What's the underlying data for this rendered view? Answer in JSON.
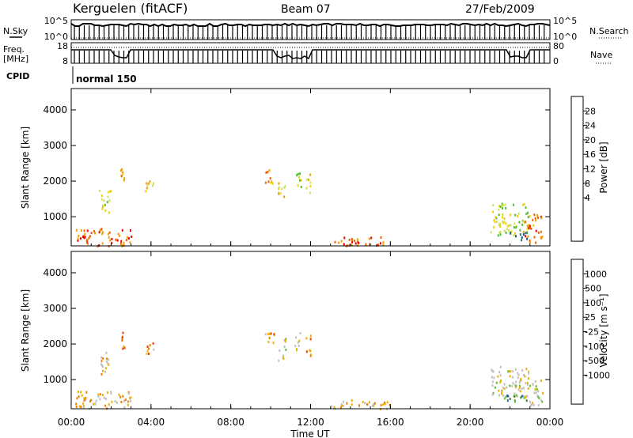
{
  "header": {
    "station": "Kerguelen (fitACF)",
    "beam": "Beam 07",
    "date": "27/Feb/2009"
  },
  "status_panels": {
    "nsky_label": "N.Sky",
    "nsky_ticks": [
      "10^5",
      "10^0"
    ],
    "nsearch_label": "N.Search",
    "freq_label_1": "Freq.",
    "freq_label_2": "[MHz]",
    "freq_ticks": [
      "18",
      "8"
    ],
    "nave_label": "Nave",
    "nave_ticks": [
      "80",
      "0"
    ],
    "cpid_label": "CPID",
    "cpid_value": "normal 150"
  },
  "chart_data": [
    {
      "type": "heatmap",
      "name": "power",
      "xlabel": "",
      "ylabel": "Slant Range [km]",
      "colorbar_label": "Power [dB]",
      "xlim": [
        0,
        24
      ],
      "ylim": [
        180,
        4600
      ],
      "x_ticks": [
        "00:00",
        "04:00",
        "08:00",
        "12:00",
        "16:00",
        "20:00",
        "00:00"
      ],
      "y_ticks": [
        1000,
        2000,
        3000,
        4000
      ],
      "colorbar": {
        "labels": [
          "28",
          "24",
          "20",
          "16",
          "12",
          "8",
          "4"
        ],
        "colors": [
          "#f00000",
          "#f06000",
          "#f0a000",
          "#f0d000",
          "#d0e060",
          "#50c030",
          "#40a060",
          "#307070",
          "#1850a0",
          "#0020f0"
        ]
      },
      "clusters": [
        {
          "t0": 1.35,
          "t1": 1.95,
          "r0": 1150,
          "r1": 1800,
          "level": 0.45
        },
        {
          "t0": 2.45,
          "t1": 2.65,
          "r0": 1900,
          "r1": 2400,
          "level": 0.2
        },
        {
          "t0": 3.6,
          "t1": 4.1,
          "r0": 1750,
          "r1": 2050,
          "level": 0.35
        },
        {
          "t0": 9.6,
          "t1": 10.15,
          "r0": 1950,
          "r1": 2350,
          "level": 0.2
        },
        {
          "t0": 10.35,
          "t1": 10.75,
          "r0": 1550,
          "r1": 2200,
          "level": 0.4
        },
        {
          "t0": 11.2,
          "t1": 11.5,
          "r0": 1850,
          "r1": 2350,
          "level": 0.45
        },
        {
          "t0": 11.75,
          "t1": 12.0,
          "r0": 1600,
          "r1": 2300,
          "level": 0.35
        },
        {
          "t0": 21.0,
          "t1": 22.9,
          "r0": 500,
          "r1": 1400,
          "level": 0.45
        },
        {
          "t0": 21.8,
          "t1": 22.9,
          "r0": 350,
          "r1": 600,
          "level": 0.8
        },
        {
          "t0": 22.6,
          "t1": 23.6,
          "r0": 300,
          "r1": 1100,
          "level": 0.2
        },
        {
          "t0": 0.2,
          "t1": 3.0,
          "r0": 200,
          "r1": 700,
          "level": 0.15
        },
        {
          "t0": 13.0,
          "t1": 16.0,
          "r0": 200,
          "r1": 450,
          "level": 0.15
        }
      ]
    },
    {
      "type": "heatmap",
      "name": "velocity",
      "xlabel": "Time UT",
      "ylabel": "Slant Range [km]",
      "colorbar_label": "Velocity [m s⁻¹]",
      "xlim": [
        0,
        24
      ],
      "ylim": [
        180,
        4600
      ],
      "x_ticks": [
        "00:00",
        "04:00",
        "08:00",
        "12:00",
        "16:00",
        "20:00",
        "00:00"
      ],
      "y_ticks": [
        1000,
        2000,
        3000,
        4000
      ],
      "colorbar": {
        "labels": [
          "1000",
          "500",
          "100",
          "25",
          "-25",
          "-100",
          "-500",
          "-1000"
        ],
        "colors": [
          "#1838c8",
          "#3060a8",
          "#308830",
          "#60c030",
          "#c0c0c0",
          "#c0c0c0",
          "#f0b000",
          "#f08000",
          "#f04000",
          "#f00000"
        ]
      },
      "clusters": [
        {
          "t0": 1.35,
          "t1": 1.95,
          "r0": 1150,
          "r1": 1800,
          "level": 0.6
        },
        {
          "t0": 2.45,
          "t1": 2.65,
          "r0": 1900,
          "r1": 2400,
          "level": 0.75
        },
        {
          "t0": 3.6,
          "t1": 4.1,
          "r0": 1750,
          "r1": 2050,
          "level": 0.7
        },
        {
          "t0": 9.6,
          "t1": 10.15,
          "r0": 1950,
          "r1": 2350,
          "level": 0.7
        },
        {
          "t0": 10.35,
          "t1": 10.75,
          "r0": 1550,
          "r1": 2200,
          "level": 0.5
        },
        {
          "t0": 11.2,
          "t1": 11.5,
          "r0": 1850,
          "r1": 2350,
          "level": 0.55
        },
        {
          "t0": 11.75,
          "t1": 12.0,
          "r0": 1600,
          "r1": 2300,
          "level": 0.7
        },
        {
          "t0": 21.0,
          "t1": 22.9,
          "r0": 500,
          "r1": 1400,
          "level": 0.5
        },
        {
          "t0": 21.8,
          "t1": 22.9,
          "r0": 350,
          "r1": 600,
          "level": 0.3
        },
        {
          "t0": 22.6,
          "t1": 23.6,
          "r0": 300,
          "r1": 1100,
          "level": 0.5
        },
        {
          "t0": 0.2,
          "t1": 3.0,
          "r0": 200,
          "r1": 700,
          "level": 0.65
        },
        {
          "t0": 13.0,
          "t1": 16.0,
          "r0": 200,
          "r1": 450,
          "level": 0.65
        }
      ]
    }
  ]
}
